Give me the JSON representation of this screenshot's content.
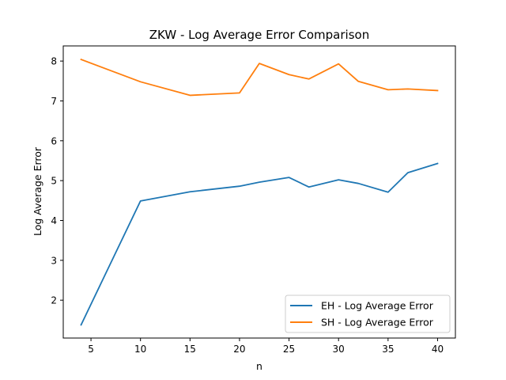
{
  "chart_data": {
    "type": "line",
    "title": "ZKW - Log Average Error Comparison",
    "xlabel": "n",
    "ylabel": "Log Average Error",
    "xlim": [
      2.2,
      41.8
    ],
    "ylim": [
      1.05,
      8.38
    ],
    "xticks": [
      5,
      10,
      15,
      20,
      25,
      30,
      35,
      40
    ],
    "yticks": [
      2,
      3,
      4,
      5,
      6,
      7,
      8
    ],
    "grid": false,
    "legend_position": "lower-right",
    "series": [
      {
        "name": "EH - Log Average Error",
        "color": "#1f77b4",
        "x": [
          4,
          10,
          15,
          20,
          22,
          25,
          27,
          30,
          32,
          35,
          37,
          40
        ],
        "y": [
          1.38,
          4.49,
          4.72,
          4.86,
          4.96,
          5.08,
          4.84,
          5.02,
          4.93,
          4.71,
          5.2,
          5.43
        ]
      },
      {
        "name": "SH - Log Average Error",
        "color": "#ff7f0e",
        "x": [
          4,
          10,
          15,
          20,
          22,
          25,
          27,
          30,
          32,
          35,
          37,
          40
        ],
        "y": [
          8.04,
          7.48,
          7.14,
          7.2,
          7.94,
          7.66,
          7.55,
          7.93,
          7.49,
          7.28,
          7.3,
          7.26
        ]
      }
    ]
  }
}
